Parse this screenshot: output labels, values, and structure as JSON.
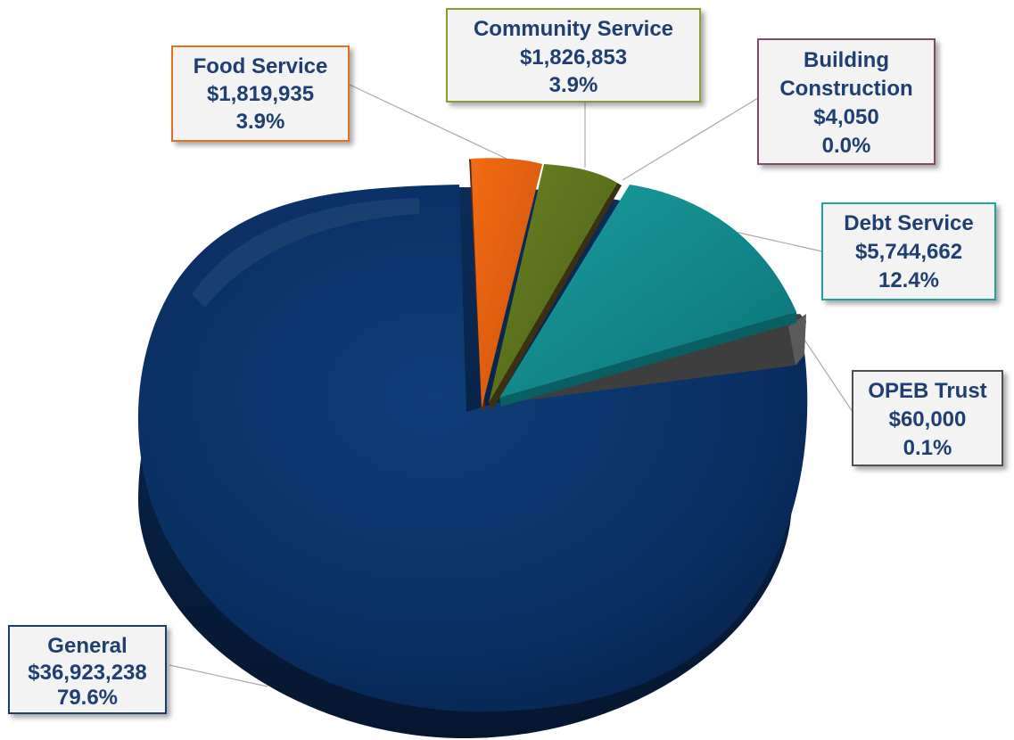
{
  "chart_data": {
    "type": "pie",
    "style": "3d",
    "slices": [
      {
        "label": "General",
        "amount": "$36,923,238",
        "percent": "79.6%",
        "value": 79.6,
        "color": "#0f3567",
        "label_border": "#15396c"
      },
      {
        "label": "Food Service",
        "amount": "$1,819,935",
        "percent": "3.9%",
        "value": 3.9,
        "color": "#e15f12",
        "label_border": "#e26f20"
      },
      {
        "label": "Community Service",
        "amount": "$1,826,853",
        "percent": "3.9%",
        "value": 3.9,
        "color": "#5b731b",
        "label_border": "#7f9b2d"
      },
      {
        "label": "Building Construction",
        "label_lines": [
          "Building",
          "Construction"
        ],
        "amount": "$4,050",
        "percent": "0.0%",
        "value": 0.0,
        "color": "#7a2d4b",
        "label_border": "#7f4c6b"
      },
      {
        "label": "Debt Service",
        "amount": "$5,744,662",
        "percent": "12.4%",
        "value": 12.4,
        "color": "#0f8a8d",
        "label_border": "#23a1a1"
      },
      {
        "label": "OPEB Trust",
        "amount": "$60,000",
        "percent": "0.1%",
        "value": 0.1,
        "color": "#4a4a4a",
        "label_border": "#505050"
      }
    ]
  }
}
